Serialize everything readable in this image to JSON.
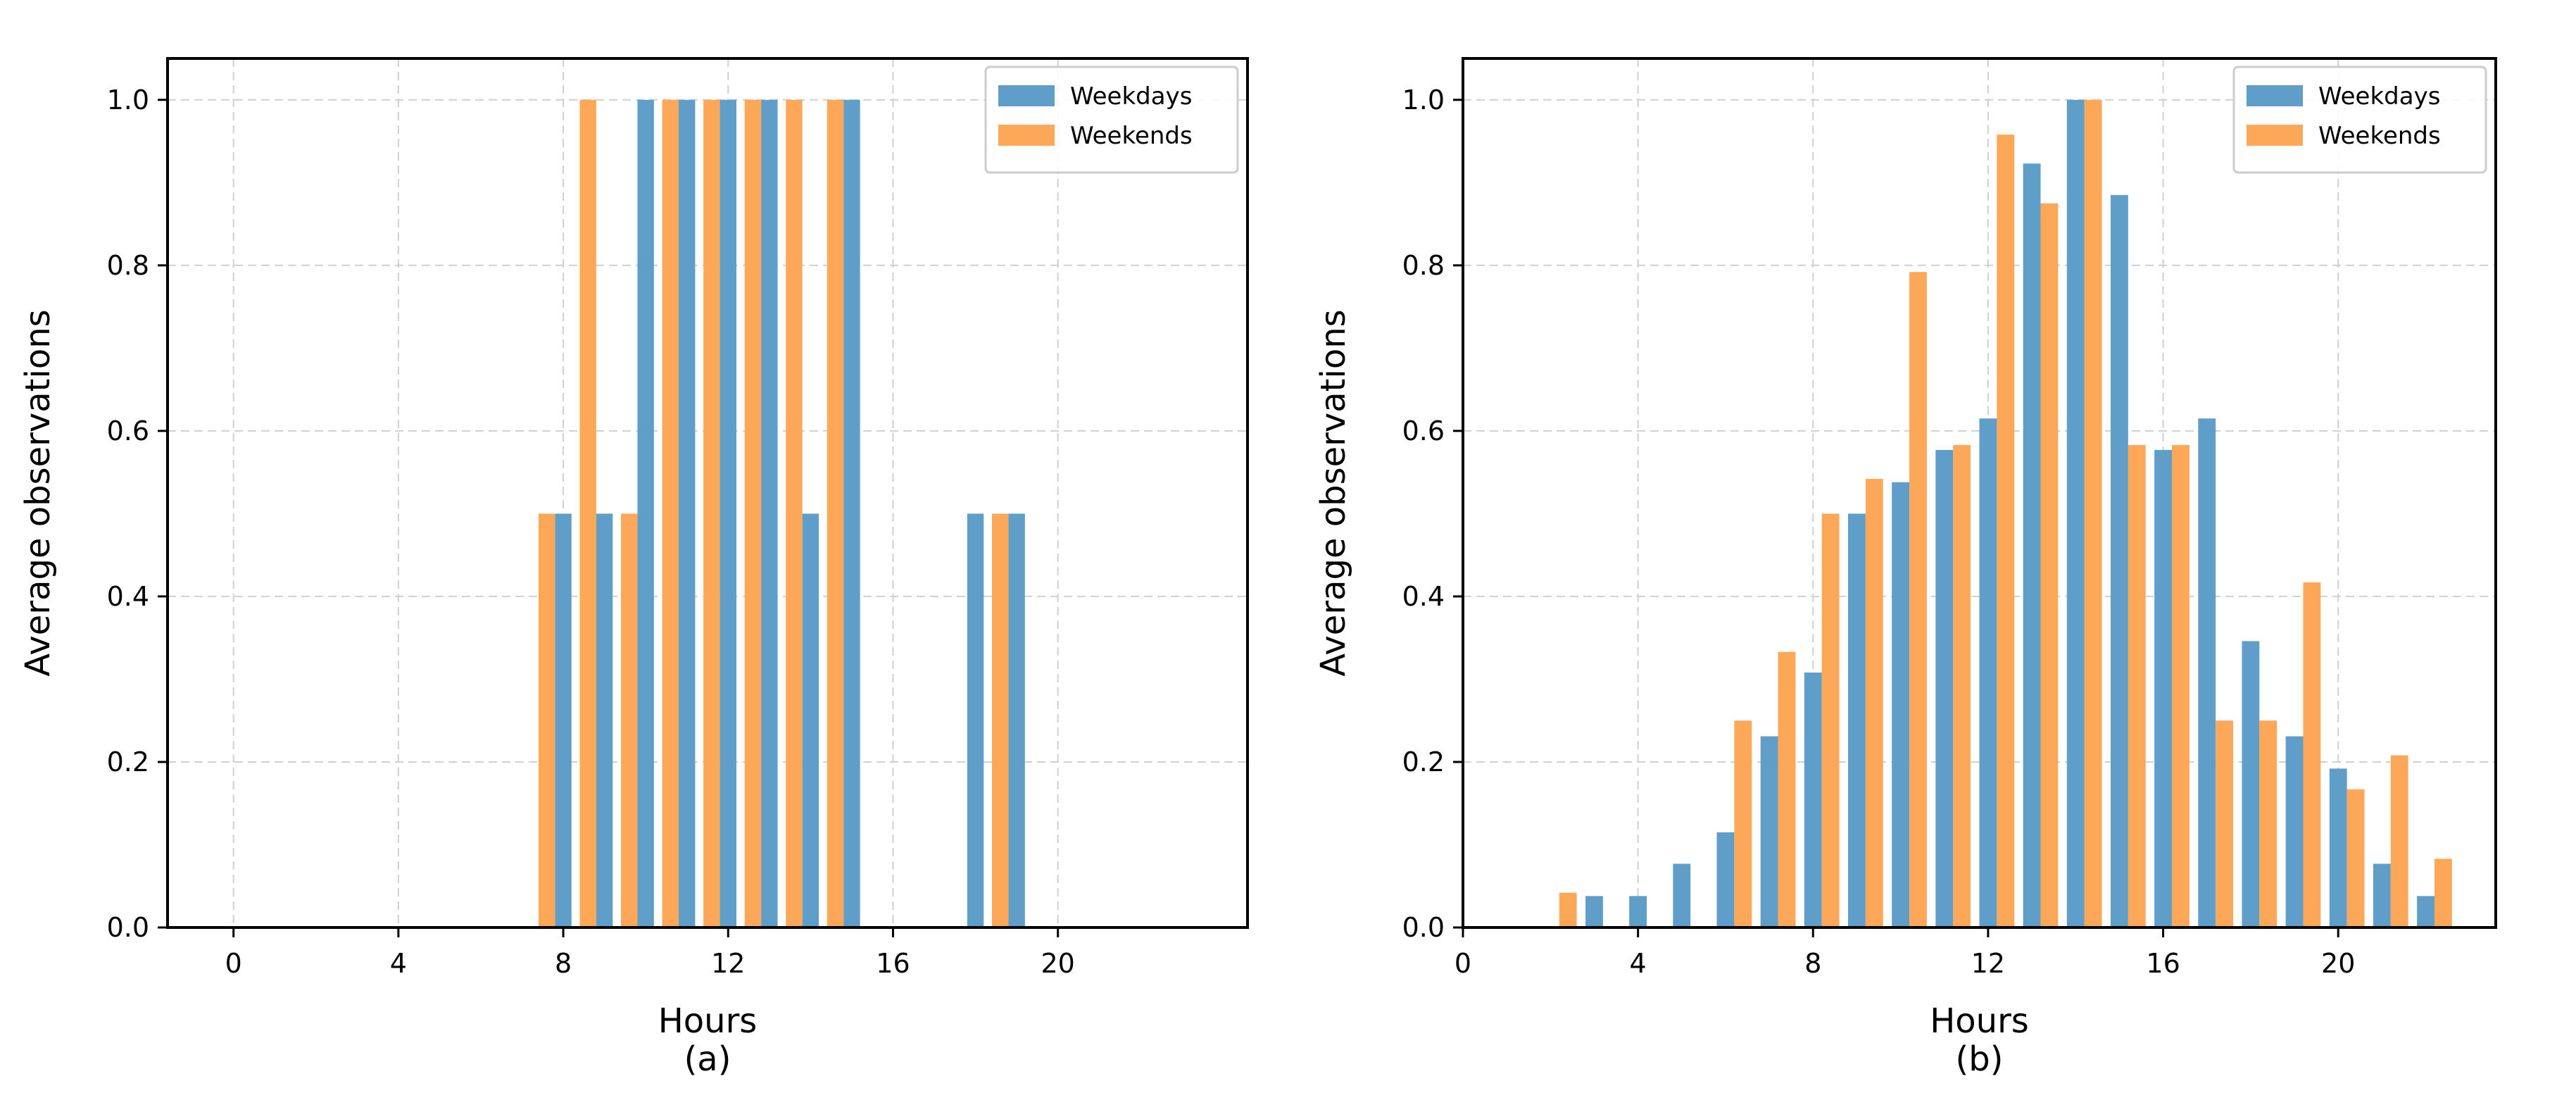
{
  "colors": {
    "weekdays": "#5f9ec9",
    "weekends": "#fda758",
    "grid": "#d0d0d0",
    "axis": "#000000"
  },
  "chart_data": [
    {
      "id": "a",
      "type": "bar",
      "subtitle": "(a)",
      "xlabel": "Hours",
      "ylabel": "Average observations",
      "xlim": [
        -1.6,
        24.6
      ],
      "ylim": [
        0,
        1.05
      ],
      "xticks": [
        0,
        4,
        8,
        12,
        16,
        20
      ],
      "xtick_labels": [
        "0",
        "4",
        "8",
        "12",
        "16",
        "20"
      ],
      "yticks": [
        0.0,
        0.2,
        0.4,
        0.6,
        0.8,
        1.0
      ],
      "ytick_labels": [
        "0.0",
        "0.2",
        "0.4",
        "0.6",
        "0.8",
        "1.0"
      ],
      "grid": true,
      "legend": "top-right",
      "bar_width": 0.4,
      "series": [
        {
          "name": "Weekdays",
          "key": "weekdays",
          "offset": 0.0,
          "x": [
            0,
            1,
            2,
            3,
            4,
            5,
            6,
            7,
            8,
            9,
            10,
            11,
            12,
            13,
            14,
            15,
            16,
            17,
            18,
            19,
            20,
            21,
            22,
            23
          ],
          "values": [
            0,
            0,
            0,
            0,
            0,
            0,
            0,
            0,
            0.5,
            0.5,
            1.0,
            1.0,
            1.0,
            1.0,
            0.5,
            1.0,
            0,
            0,
            0.5,
            0.5,
            0,
            0,
            0,
            0
          ]
        },
        {
          "name": "Weekends",
          "key": "weekends",
          "offset": -0.4,
          "x": [
            0,
            1,
            2,
            3,
            4,
            5,
            6,
            7,
            8,
            9,
            10,
            11,
            12,
            13,
            14,
            15,
            16,
            17,
            18,
            19,
            20,
            21,
            22,
            23
          ],
          "values": [
            0,
            0,
            0,
            0,
            0,
            0,
            0,
            0,
            0.5,
            1.0,
            0.5,
            1.0,
            1.0,
            1.0,
            1.0,
            1.0,
            0,
            0,
            0,
            0.5,
            0,
            0,
            0,
            0
          ]
        }
      ]
    },
    {
      "id": "b",
      "type": "bar",
      "subtitle": "(b)",
      "xlabel": "Hours",
      "ylabel": "Average observations",
      "xlim": [
        0,
        23.6
      ],
      "ylim": [
        0,
        1.05
      ],
      "xticks": [
        0,
        4,
        8,
        12,
        16,
        20
      ],
      "xtick_labels": [
        "0",
        "4",
        "8",
        "12",
        "16",
        "20"
      ],
      "yticks": [
        0.0,
        0.2,
        0.4,
        0.6,
        0.8,
        1.0
      ],
      "ytick_labels": [
        "0.0",
        "0.2",
        "0.4",
        "0.6",
        "0.8",
        "1.0"
      ],
      "grid": true,
      "legend": "top-right",
      "bar_width": 0.4,
      "series": [
        {
          "name": "Weekdays",
          "key": "weekdays",
          "offset": 0.0,
          "x": [
            0,
            1,
            2,
            3,
            4,
            5,
            6,
            7,
            8,
            9,
            10,
            11,
            12,
            13,
            14,
            15,
            16,
            17,
            18,
            19,
            20,
            21,
            22,
            23
          ],
          "values": [
            0,
            0,
            0,
            0.038,
            0.038,
            0.077,
            0.115,
            0.231,
            0.308,
            0.5,
            0.538,
            0.577,
            0.615,
            0.923,
            1.0,
            0.885,
            0.577,
            0.615,
            0.346,
            0.231,
            0.192,
            0.077,
            0.038,
            0
          ]
        },
        {
          "name": "Weekends",
          "key": "weekends",
          "offset": 0.4,
          "x": [
            0,
            1,
            2,
            3,
            4,
            5,
            6,
            7,
            8,
            9,
            10,
            11,
            12,
            13,
            14,
            15,
            16,
            17,
            18,
            19,
            20,
            21,
            22,
            23
          ],
          "values": [
            0,
            0,
            0.042,
            0,
            0,
            0,
            0.25,
            0.333,
            0.5,
            0.542,
            0.792,
            0.583,
            0.958,
            0.875,
            1.0,
            0.583,
            0.583,
            0.25,
            0.25,
            0.417,
            0.167,
            0.208,
            0.083,
            0
          ]
        }
      ]
    }
  ]
}
